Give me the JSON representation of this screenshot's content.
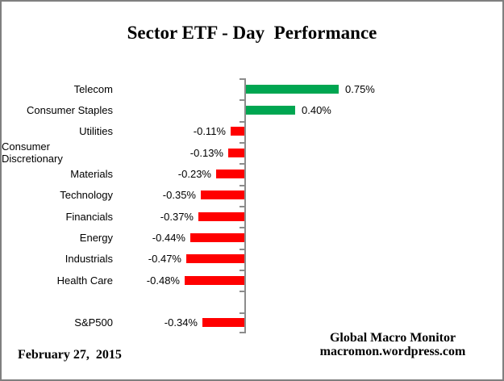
{
  "window": {
    "background": "#FFFFFF",
    "border_color": "#7F7F7F"
  },
  "chart_data": {
    "type": "bar",
    "orientation": "horizontal",
    "title": "Sector ETF - Day  Performance",
    "categories": [
      "Telecom",
      "Consumer Staples",
      "Utilities",
      "Consumer Discretionary",
      "Materials",
      "Technology",
      "Financials",
      "Energy",
      "Industrials",
      "Health Care",
      "",
      "S&P500"
    ],
    "values": [
      0.75,
      0.4,
      -0.11,
      -0.13,
      -0.23,
      -0.35,
      -0.37,
      -0.44,
      -0.47,
      -0.48,
      null,
      -0.34
    ],
    "value_labels": [
      "0.75%",
      "0.40%",
      "-0.11%",
      "-0.13%",
      "-0.23%",
      "-0.35%",
      "-0.37%",
      "-0.44%",
      "-0.47%",
      "-0.48%",
      "",
      "-0.34%"
    ],
    "unit": "%",
    "baseline": 0,
    "grid": "off",
    "legend": "none",
    "data_labels": "outside-end",
    "colors": {
      "positive": "#00A651",
      "negative": "#FF0000",
      "axis": "#8C8C8C"
    }
  },
  "footer": {
    "date": "February 27,  2015",
    "source_line1": "Global Macro Monitor",
    "source_line2": "macromon.wordpress.com"
  }
}
